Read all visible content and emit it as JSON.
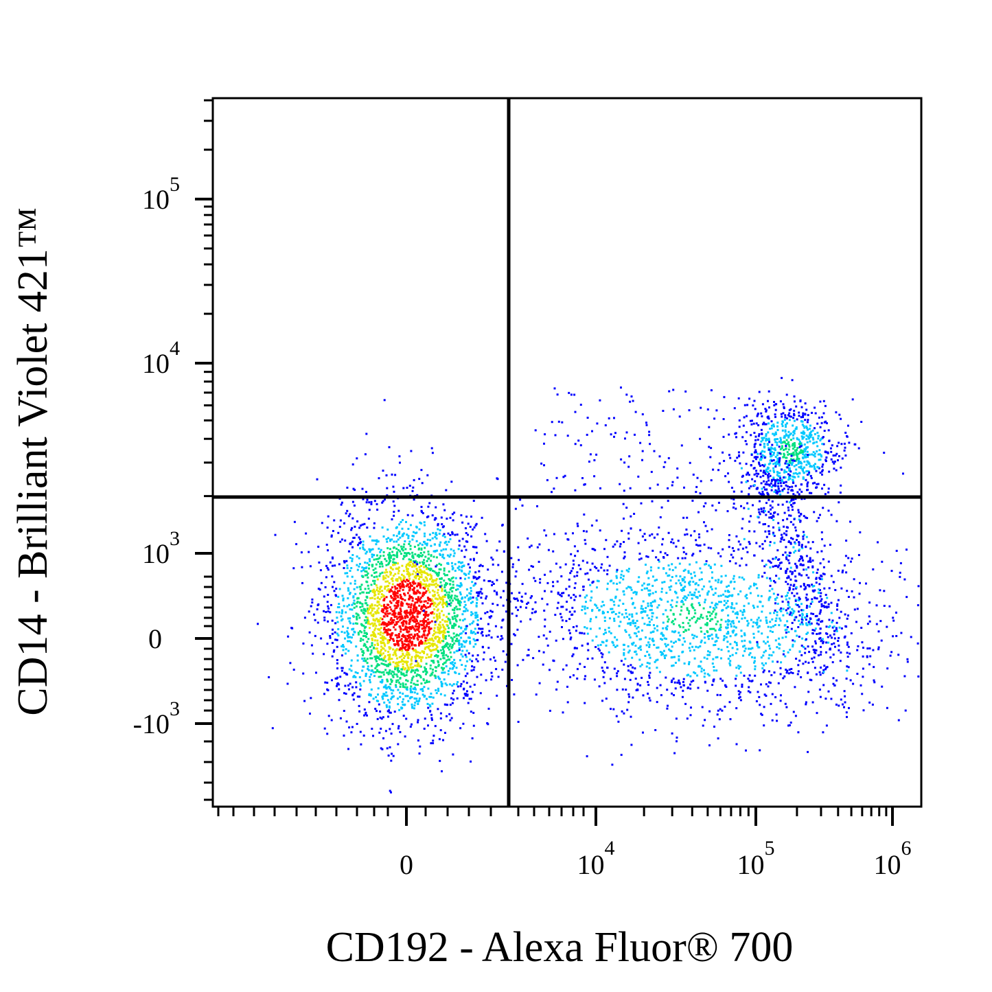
{
  "chart_data": {
    "type": "scatter",
    "subtype": "flow-cytometry-density-dot-plot",
    "title": "",
    "xlabel": "CD192 - Alexa Fluor® 700",
    "ylabel": "CD14 - Brilliant Violet 421™",
    "x_scale": "biexponential",
    "y_scale": "biexponential",
    "xlim": [
      -3000,
      1500000
    ],
    "ylim": [
      -3000,
      400000
    ],
    "x_ticks": [
      {
        "value": 0,
        "base": "0",
        "exp": ""
      },
      {
        "value": 10000,
        "base": "10",
        "exp": "4"
      },
      {
        "value": 100000,
        "base": "10",
        "exp": "5"
      },
      {
        "value": 1000000,
        "base": "10",
        "exp": "6"
      }
    ],
    "y_ticks": [
      {
        "value": -1000,
        "base": "-10",
        "exp": "3"
      },
      {
        "value": 0,
        "base": "0",
        "exp": ""
      },
      {
        "value": 1000,
        "base": "10",
        "exp": "3"
      },
      {
        "value": 10000,
        "base": "10",
        "exp": "4"
      },
      {
        "value": 100000,
        "base": "10",
        "exp": "5"
      }
    ],
    "quadrant_gates": {
      "x": 1900,
      "y": 2000
    },
    "populations": [
      {
        "name": "",
        "center_x": 0,
        "center_y": 250,
        "events": 4200,
        "peak_color": "#ff0000"
      },
      {
        "name": "",
        "center_x": 28000,
        "center_y": 250,
        "events": 2600,
        "peak_color": "#00c8ff"
      },
      {
        "name": "",
        "center_x": 150000,
        "center_y": 3200,
        "events": 1000,
        "peak_color": "#00d8c0"
      }
    ],
    "color_scale": [
      "#0000ff",
      "#00c8ff",
      "#00e080",
      "#e6e600",
      "#ff0000"
    ]
  }
}
